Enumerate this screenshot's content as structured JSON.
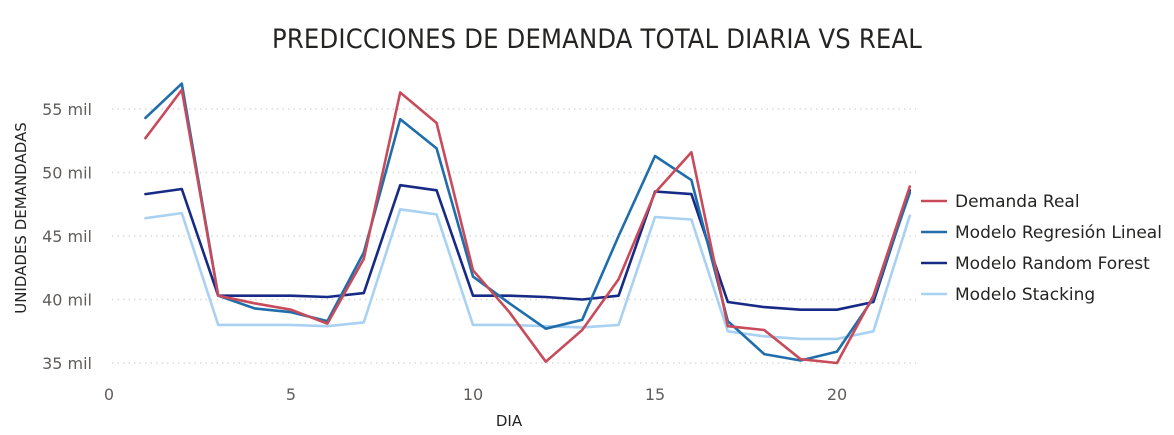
{
  "chart_data": {
    "type": "line",
    "title": "PREDICCIONES DE DEMANDA TOTAL DIARIA VS REAL",
    "xlabel": "DIA",
    "ylabel": "UNIDADES DEMANDADAS",
    "xlim": [
      0,
      22
    ],
    "ylim": [
      34,
      57.5
    ],
    "x_ticks": [
      0,
      5,
      10,
      15,
      20
    ],
    "y_ticks": [
      35000,
      40000,
      45000,
      50000,
      55000
    ],
    "y_tick_labels": [
      "35 mil",
      "40 mil",
      "45 mil",
      "50 mil",
      "55 mil"
    ],
    "grid": true,
    "legend_position": "right",
    "x": [
      1,
      2,
      3,
      4,
      5,
      6,
      7,
      8,
      9,
      10,
      11,
      12,
      13,
      14,
      15,
      16,
      17,
      18,
      19,
      20,
      21,
      22
    ],
    "series": [
      {
        "name": "Demanda Real",
        "color": "#c84b5b",
        "values": [
          52700,
          56500,
          40300,
          39700,
          39200,
          38100,
          43200,
          56300,
          53900,
          42300,
          39000,
          35100,
          37600,
          41600,
          48400,
          51600,
          37900,
          37600,
          35300,
          35000,
          40300,
          48900
        ]
      },
      {
        "name": "Modelo Regresión Lineal",
        "color": "#1f6eab",
        "values": [
          54300,
          57000,
          40300,
          39300,
          39000,
          38300,
          43700,
          54200,
          51900,
          41800,
          39700,
          37700,
          38400,
          45000,
          51300,
          49400,
          38300,
          35700,
          35200,
          35900,
          40100,
          48400
        ]
      },
      {
        "name": "Modelo Random Forest",
        "color": "#172b86",
        "values": [
          48300,
          48700,
          40300,
          40300,
          40300,
          40200,
          40500,
          49000,
          48600,
          40300,
          40300,
          40200,
          40000,
          40300,
          48500,
          48300,
          39800,
          39400,
          39200,
          39200,
          39800,
          48600
        ]
      },
      {
        "name": "Modelo Stacking",
        "color": "#a9d1f2",
        "values": [
          46400,
          46800,
          38000,
          38000,
          38000,
          37900,
          38200,
          47100,
          46700,
          38000,
          38000,
          37900,
          37800,
          38000,
          46500,
          46300,
          37500,
          37100,
          36900,
          36900,
          37500,
          46600
        ]
      }
    ]
  }
}
